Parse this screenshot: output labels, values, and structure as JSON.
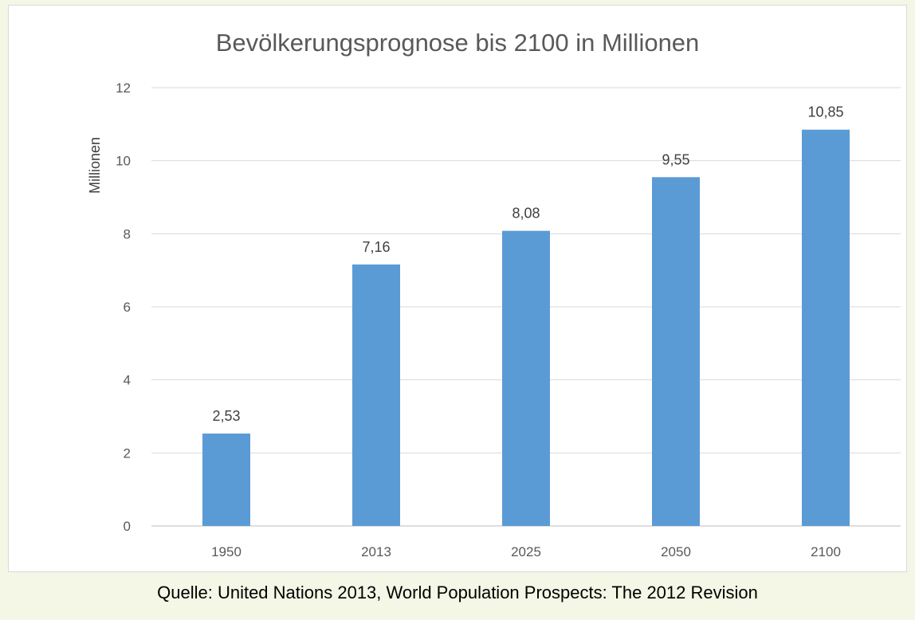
{
  "chart_data": {
    "type": "bar",
    "title": "Bevölkerungsprognose  bis 2100 in Millionen",
    "xlabel": "",
    "ylabel": "Millionen",
    "categories": [
      "1950",
      "2013",
      "2025",
      "2050",
      "2100"
    ],
    "values": [
      2.53,
      7.16,
      8.08,
      9.55,
      10.85
    ],
    "value_labels": [
      "2,53",
      "7,16",
      "8,08",
      "9,55",
      "10,85"
    ],
    "ylim": [
      0,
      12
    ],
    "yticks": [
      0,
      2,
      4,
      6,
      8,
      10,
      12
    ],
    "grid": true,
    "legend": "none",
    "bar_color": "#5b9bd5"
  },
  "source": "Quelle:  United Nations 2013, World Population Prospects: The 2012 Revision"
}
